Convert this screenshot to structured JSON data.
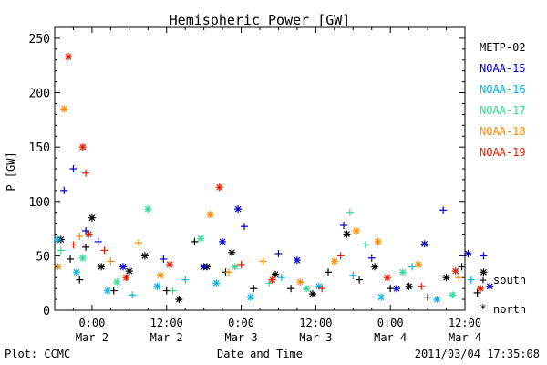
{
  "footer": {
    "left": "Plot: CCMC",
    "right": "2011/03/04 17:35:08"
  },
  "symbol_legend": [
    {
      "symbol": "+",
      "label": "south"
    },
    {
      "symbol": "*",
      "label": "north"
    }
  ],
  "chart_data": {
    "type": "scatter",
    "title": "Hemispheric Power [GW]",
    "xlabel": "Date and Time",
    "ylabel": "P [GW]",
    "ylim": [
      0,
      260
    ],
    "yticks": [
      0,
      50,
      100,
      150,
      200,
      250
    ],
    "xlim_hours_from_mar2_00": [
      -6,
      60
    ],
    "xticks": [
      {
        "hours": 0,
        "time": "0:00",
        "date": "Mar 2"
      },
      {
        "hours": 12,
        "time": "12:00",
        "date": "Mar 2"
      },
      {
        "hours": 24,
        "time": "0:00",
        "date": "Mar 3"
      },
      {
        "hours": 36,
        "time": "12:00",
        "date": "Mar 3"
      },
      {
        "hours": 48,
        "time": "0:00",
        "date": "Mar 4"
      },
      {
        "hours": 60,
        "time": "12:00",
        "date": "Mar 4"
      }
    ],
    "legend_placement": "right",
    "series": [
      {
        "name": "METP-02",
        "color": "#000000",
        "points": [
          {
            "x": -5.0,
            "y": 65,
            "m": "*"
          },
          {
            "x": -3.5,
            "y": 47,
            "m": "+"
          },
          {
            "x": -2.0,
            "y": 28,
            "m": "+"
          },
          {
            "x": -1.0,
            "y": 58,
            "m": "+"
          },
          {
            "x": 0.0,
            "y": 85,
            "m": "*"
          },
          {
            "x": 1.5,
            "y": 40,
            "m": "*"
          },
          {
            "x": 3.5,
            "y": 18,
            "m": "+"
          },
          {
            "x": 6.0,
            "y": 36,
            "m": "*"
          },
          {
            "x": 8.5,
            "y": 50,
            "m": "*"
          },
          {
            "x": 12.0,
            "y": 18,
            "m": "+"
          },
          {
            "x": 14.0,
            "y": 10,
            "m": "*"
          },
          {
            "x": 16.5,
            "y": 63,
            "m": "+"
          },
          {
            "x": 18.5,
            "y": 40,
            "m": "*"
          },
          {
            "x": 21.5,
            "y": 35,
            "m": "+"
          },
          {
            "x": 22.5,
            "y": 53,
            "m": "*"
          },
          {
            "x": 26.0,
            "y": 20,
            "m": "+"
          },
          {
            "x": 29.5,
            "y": 33,
            "m": "*"
          },
          {
            "x": 32.0,
            "y": 20,
            "m": "+"
          },
          {
            "x": 35.5,
            "y": 15,
            "m": "*"
          },
          {
            "x": 38.0,
            "y": 35,
            "m": "+"
          },
          {
            "x": 41.0,
            "y": 70,
            "m": "*"
          },
          {
            "x": 43.0,
            "y": 28,
            "m": "+"
          },
          {
            "x": 45.5,
            "y": 40,
            "m": "*"
          },
          {
            "x": 48.0,
            "y": 20,
            "m": "+"
          },
          {
            "x": 51.0,
            "y": 22,
            "m": "*"
          },
          {
            "x": 54.0,
            "y": 12,
            "m": "+"
          },
          {
            "x": 57.0,
            "y": 30,
            "m": "*"
          },
          {
            "x": 59.5,
            "y": 40,
            "m": "+"
          },
          {
            "x": 62.0,
            "y": 16,
            "m": "+"
          },
          {
            "x": 63.0,
            "y": 35,
            "m": "*"
          }
        ]
      },
      {
        "name": "NOAA-15",
        "color": "#0000c8",
        "points": [
          {
            "x": -4.5,
            "y": 110,
            "m": "+"
          },
          {
            "x": -3.0,
            "y": 130,
            "m": "+"
          },
          {
            "x": -1.0,
            "y": 73,
            "m": "+"
          },
          {
            "x": 1.0,
            "y": 63,
            "m": "+"
          },
          {
            "x": 5.0,
            "y": 40,
            "m": "*"
          },
          {
            "x": 11.5,
            "y": 47,
            "m": "+"
          },
          {
            "x": 18.0,
            "y": 40,
            "m": "*"
          },
          {
            "x": 21.0,
            "y": 63,
            "m": "*"
          },
          {
            "x": 23.5,
            "y": 93,
            "m": "*"
          },
          {
            "x": 24.5,
            "y": 77,
            "m": "+"
          },
          {
            "x": 30.0,
            "y": 52,
            "m": "+"
          },
          {
            "x": 33.0,
            "y": 46,
            "m": "*"
          },
          {
            "x": 40.5,
            "y": 78,
            "m": "+"
          },
          {
            "x": 45.0,
            "y": 48,
            "m": "+"
          },
          {
            "x": 49.0,
            "y": 20,
            "m": "*"
          },
          {
            "x": 53.5,
            "y": 61,
            "m": "*"
          },
          {
            "x": 56.5,
            "y": 92,
            "m": "+"
          },
          {
            "x": 60.5,
            "y": 52,
            "m": "*"
          },
          {
            "x": 63.0,
            "y": 50,
            "m": "+"
          },
          {
            "x": 64.0,
            "y": 22,
            "m": "*"
          }
        ]
      },
      {
        "name": "NOAA-16",
        "color": "#00b4e6",
        "points": [
          {
            "x": -5.5,
            "y": 65,
            "m": "*"
          },
          {
            "x": -2.5,
            "y": 35,
            "m": "*"
          },
          {
            "x": 2.5,
            "y": 18,
            "m": "*"
          },
          {
            "x": 6.5,
            "y": 14,
            "m": "+"
          },
          {
            "x": 10.5,
            "y": 22,
            "m": "*"
          },
          {
            "x": 15.0,
            "y": 28,
            "m": "+"
          },
          {
            "x": 20.0,
            "y": 25,
            "m": "*"
          },
          {
            "x": 25.5,
            "y": 12,
            "m": "*"
          },
          {
            "x": 30.5,
            "y": 30,
            "m": "+"
          },
          {
            "x": 36.5,
            "y": 22,
            "m": "*"
          },
          {
            "x": 42.0,
            "y": 32,
            "m": "+"
          },
          {
            "x": 46.5,
            "y": 12,
            "m": "*"
          },
          {
            "x": 51.5,
            "y": 40,
            "m": "+"
          },
          {
            "x": 55.5,
            "y": 10,
            "m": "*"
          },
          {
            "x": 61.0,
            "y": 28,
            "m": "+"
          }
        ]
      },
      {
        "name": "NOAA-17",
        "color": "#32dc96",
        "points": [
          {
            "x": -5.0,
            "y": 55,
            "m": "+"
          },
          {
            "x": -1.5,
            "y": 48,
            "m": "*"
          },
          {
            "x": 4.0,
            "y": 26,
            "m": "*"
          },
          {
            "x": 9.0,
            "y": 93,
            "m": "*"
          },
          {
            "x": 13.0,
            "y": 18,
            "m": "+"
          },
          {
            "x": 17.5,
            "y": 66,
            "m": "*"
          },
          {
            "x": 23.0,
            "y": 40,
            "m": "*"
          },
          {
            "x": 28.5,
            "y": 25,
            "m": "+"
          },
          {
            "x": 34.5,
            "y": 20,
            "m": "*"
          },
          {
            "x": 41.5,
            "y": 90,
            "m": "+"
          },
          {
            "x": 44.0,
            "y": 60,
            "m": "+"
          },
          {
            "x": 50.0,
            "y": 35,
            "m": "*"
          },
          {
            "x": 58.0,
            "y": 14,
            "m": "*"
          }
        ]
      },
      {
        "name": "NOAA-18",
        "color": "#ff8c00",
        "points": [
          {
            "x": -4.5,
            "y": 185,
            "m": "*"
          },
          {
            "x": -5.5,
            "y": 40,
            "m": "*"
          },
          {
            "x": -2.0,
            "y": 68,
            "m": "+"
          },
          {
            "x": 3.0,
            "y": 45,
            "m": "+"
          },
          {
            "x": 7.5,
            "y": 62,
            "m": "+"
          },
          {
            "x": 11.0,
            "y": 32,
            "m": "*"
          },
          {
            "x": 19.0,
            "y": 88,
            "m": "*"
          },
          {
            "x": 22.0,
            "y": 35,
            "m": "+"
          },
          {
            "x": 27.5,
            "y": 45,
            "m": "+"
          },
          {
            "x": 33.5,
            "y": 26,
            "m": "*"
          },
          {
            "x": 39.0,
            "y": 45,
            "m": "*"
          },
          {
            "x": 42.5,
            "y": 73,
            "m": "*"
          },
          {
            "x": 46.0,
            "y": 63,
            "m": "*"
          },
          {
            "x": 52.5,
            "y": 42,
            "m": "*"
          },
          {
            "x": 59.0,
            "y": 30,
            "m": "+"
          }
        ]
      },
      {
        "name": "NOAA-19",
        "color": "#e61e00",
        "points": [
          {
            "x": -3.8,
            "y": 233,
            "m": "*"
          },
          {
            "x": -1.5,
            "y": 150,
            "m": "*"
          },
          {
            "x": -1.0,
            "y": 126,
            "m": "+"
          },
          {
            "x": -0.5,
            "y": 70,
            "m": "*"
          },
          {
            "x": -3.0,
            "y": 60,
            "m": "+"
          },
          {
            "x": 2.0,
            "y": 55,
            "m": "+"
          },
          {
            "x": 5.5,
            "y": 30,
            "m": "*"
          },
          {
            "x": 12.5,
            "y": 42,
            "m": "*"
          },
          {
            "x": 20.5,
            "y": 113,
            "m": "*"
          },
          {
            "x": 24.0,
            "y": 42,
            "m": "+"
          },
          {
            "x": 29.0,
            "y": 28,
            "m": "*"
          },
          {
            "x": 37.0,
            "y": 20,
            "m": "+"
          },
          {
            "x": 40.0,
            "y": 50,
            "m": "+"
          },
          {
            "x": 47.5,
            "y": 30,
            "m": "*"
          },
          {
            "x": 53.0,
            "y": 22,
            "m": "+"
          },
          {
            "x": 58.5,
            "y": 36,
            "m": "*"
          },
          {
            "x": 62.5,
            "y": 20,
            "m": "*"
          }
        ]
      }
    ]
  }
}
